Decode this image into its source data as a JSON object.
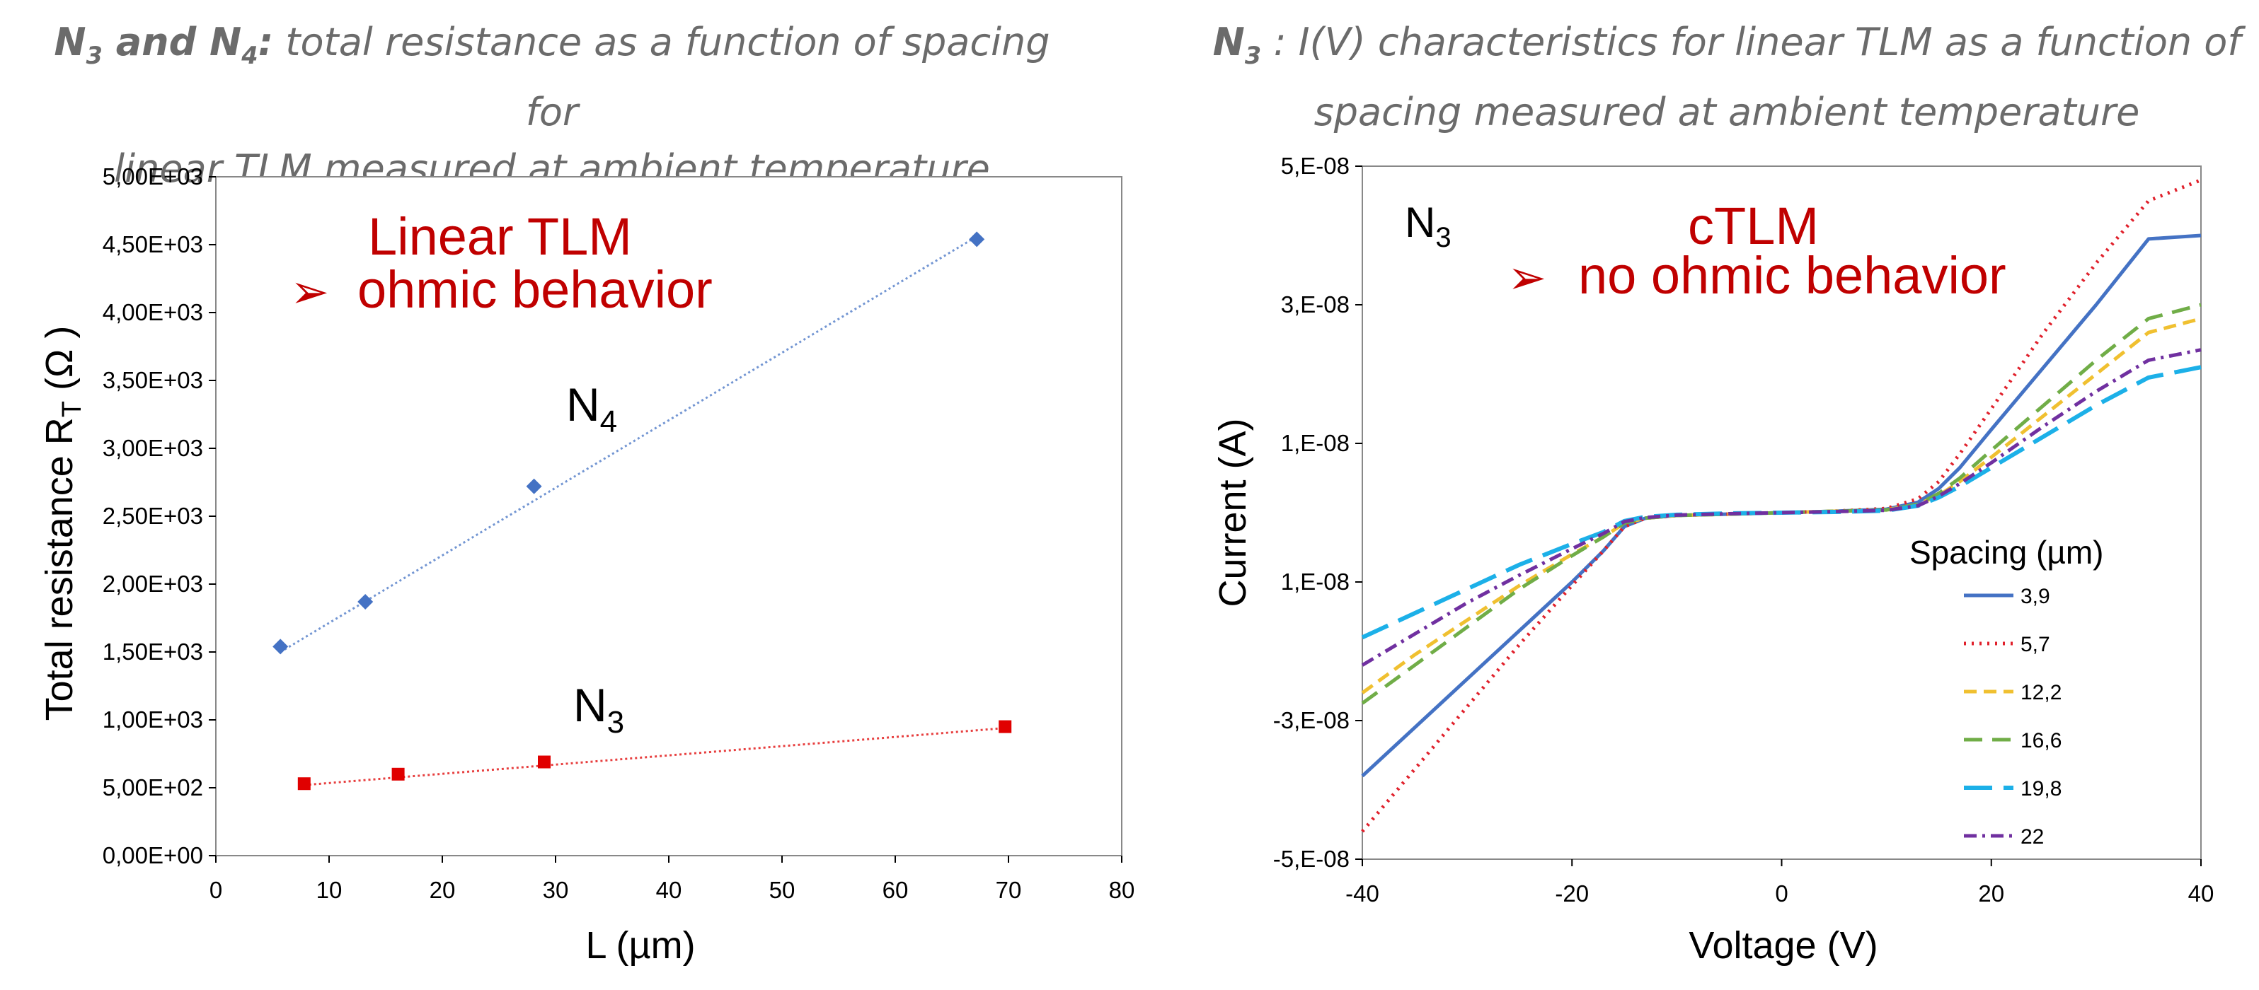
{
  "left_title": {
    "bold_a": "N",
    "bold_a_sub": "3",
    "bold_mid": " and N",
    "bold_b_sub": "4",
    "bold_end": ":",
    "line1_rest": " total resistance as a function of spacing for",
    "line2": "linear TLM measured at ambient temperature"
  },
  "right_title": {
    "bold_a": "N",
    "bold_a_sub": "3",
    "line1_rest": " : I(V) characteristics for linear TLM as a function of",
    "line2": "spacing measured at ambient temperature"
  },
  "chart_data": [
    {
      "type": "scatter",
      "xlabel": "L (µm)",
      "ylabel_main": "Total resistance R",
      "ylabel_sub": "T",
      "ylabel_unit": " (Ω )",
      "xlim": [
        0,
        80
      ],
      "ylim": [
        0,
        5000
      ],
      "x_ticks": [
        "0",
        "10",
        "20",
        "30",
        "40",
        "50",
        "60",
        "70",
        "80"
      ],
      "y_ticks": [
        "0,00E+00",
        "5,00E+02",
        "1,00E+03",
        "1,50E+03",
        "2,00E+03",
        "2,50E+03",
        "3,00E+03",
        "3,50E+03",
        "4,00E+03",
        "4,50E+03",
        "5,00E+03"
      ],
      "annotation_line1": "Linear TLM",
      "annotation_arrow": "➢",
      "annotation_line2": "ohmic behavior",
      "series": [
        {
          "label": "N",
          "label_sub": "4",
          "color": "#4472c4",
          "marker": "diamond",
          "x": [
            5.7,
            13.2,
            28.1,
            67.2
          ],
          "y": [
            1540,
            1870,
            2720,
            4540
          ],
          "trend": [
            [
              5.7,
              1500
            ],
            [
              67.2,
              4560
            ]
          ]
        },
        {
          "label": "N",
          "label_sub": "3",
          "color": "#e00000",
          "marker": "square",
          "x": [
            7.8,
            16.1,
            29.0,
            69.7
          ],
          "y": [
            530,
            600,
            690,
            950
          ],
          "trend": [
            [
              7.8,
              520
            ],
            [
              69.7,
              940
            ]
          ]
        }
      ]
    },
    {
      "type": "line",
      "xlabel": "Voltage (V)",
      "ylabel": "Current (A)",
      "xlim": [
        -40,
        40
      ],
      "ylim": [
        -5e-08,
        5e-08
      ],
      "x_ticks": [
        "-40",
        "-20",
        "0",
        "20",
        "40"
      ],
      "y_ticks": [
        "-5,E-08",
        "-3,E-08",
        "1,E-08",
        "1,E-08",
        "3,E-08",
        "5,E-08"
      ],
      "sample_label": "N",
      "sample_label_sub": "3",
      "annotation_line1": "cTLM",
      "annotation_arrow": "➢",
      "annotation_line2": "no ohmic behavior",
      "legend_title": "Spacing (µm)",
      "x": [
        -40,
        -35,
        -30,
        -25,
        -20,
        -17,
        -15,
        -13,
        -10,
        -5,
        0,
        5,
        10,
        13,
        15,
        17,
        20,
        25,
        30,
        35,
        40
      ],
      "series": [
        {
          "name": "3,9",
          "color": "#4472c4",
          "dash": "",
          "width": 5,
          "y": [
            -3.8e-08,
            -3.1e-08,
            -2.4e-08,
            -1.7e-08,
            -1e-08,
            -5.5e-09,
            -2e-09,
            -8e-10,
            -4e-10,
            -2e-10,
            0,
            2e-10,
            5e-10,
            1.5e-09,
            3.5e-09,
            6.5e-09,
            1.2e-08,
            2.1e-08,
            3e-08,
            3.95e-08,
            4e-08
          ]
        },
        {
          "name": "5,7",
          "color": "#e0202b",
          "dash": "3,8",
          "width": 5,
          "y": [
            -4.6e-08,
            -3.7e-08,
            -2.8e-08,
            -1.9e-08,
            -1.05e-08,
            -5.5e-09,
            -2e-09,
            -8e-10,
            -4e-10,
            -2e-10,
            0,
            2e-10,
            6e-10,
            2e-09,
            4.5e-09,
            8.5e-09,
            1.5e-08,
            2.6e-08,
            3.6e-08,
            4.5e-08,
            4.8e-08
          ]
        },
        {
          "name": "12,2",
          "color": "#f0c030",
          "dash": "18,10",
          "width": 5,
          "y": [
            -2.6e-08,
            -2.05e-08,
            -1.55e-08,
            -1.05e-08,
            -6e-09,
            -3.5e-09,
            -1.5e-09,
            -8e-10,
            -4e-10,
            -2e-10,
            0,
            2e-10,
            4e-10,
            1.2e-09,
            2.5e-09,
            4.5e-09,
            8e-09,
            1.4e-08,
            2e-08,
            2.6e-08,
            2.8e-08
          ]
        },
        {
          "name": "16,6",
          "color": "#70ad47",
          "dash": "26,14",
          "width": 5,
          "y": [
            -2.75e-08,
            -2.2e-08,
            -1.65e-08,
            -1.1e-08,
            -6.2e-09,
            -3.5e-09,
            -1.5e-09,
            -8e-10,
            -4e-10,
            -2e-10,
            0,
            2e-10,
            4e-10,
            1.2e-09,
            2.8e-09,
            5e-09,
            9e-09,
            1.55e-08,
            2.2e-08,
            2.8e-08,
            3e-08
          ]
        },
        {
          "name": "19,8",
          "color": "#1cb0e8",
          "dash": "40,16",
          "width": 6,
          "y": [
            -1.8e-08,
            -1.45e-08,
            -1.1e-08,
            -7.5e-09,
            -4.5e-09,
            -2.8e-09,
            -1.2e-09,
            -6e-10,
            -3e-10,
            -1e-10,
            0,
            1e-10,
            3e-10,
            1e-09,
            2.2e-09,
            3.8e-09,
            6.5e-09,
            1.1e-08,
            1.55e-08,
            1.95e-08,
            2.1e-08
          ]
        },
        {
          "name": "22",
          "color": "#7030a0",
          "dash": "18,8,4,8",
          "width": 5,
          "y": [
            -2.2e-08,
            -1.75e-08,
            -1.3e-08,
            -9e-09,
            -5.2e-09,
            -3e-09,
            -1.3e-09,
            -7e-10,
            -3.5e-10,
            -1.5e-10,
            0,
            1.5e-10,
            3.5e-10,
            1e-09,
            2.4e-09,
            4.2e-09,
            7.2e-09,
            1.25e-08,
            1.75e-08,
            2.2e-08,
            2.35e-08
          ]
        }
      ]
    }
  ]
}
